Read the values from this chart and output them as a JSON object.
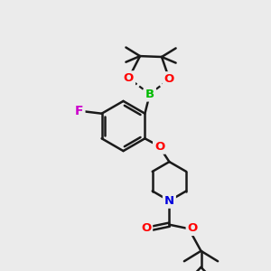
{
  "background_color": "#ebebeb",
  "bond_color": "#1a1a1a",
  "bond_width": 1.8,
  "atom_colors": {
    "B": "#00bb00",
    "O": "#ff0000",
    "N": "#0000dd",
    "F": "#cc00cc"
  },
  "figsize": [
    3.0,
    3.0
  ],
  "dpi": 100,
  "xlim": [
    0,
    10
  ],
  "ylim": [
    0,
    10
  ]
}
